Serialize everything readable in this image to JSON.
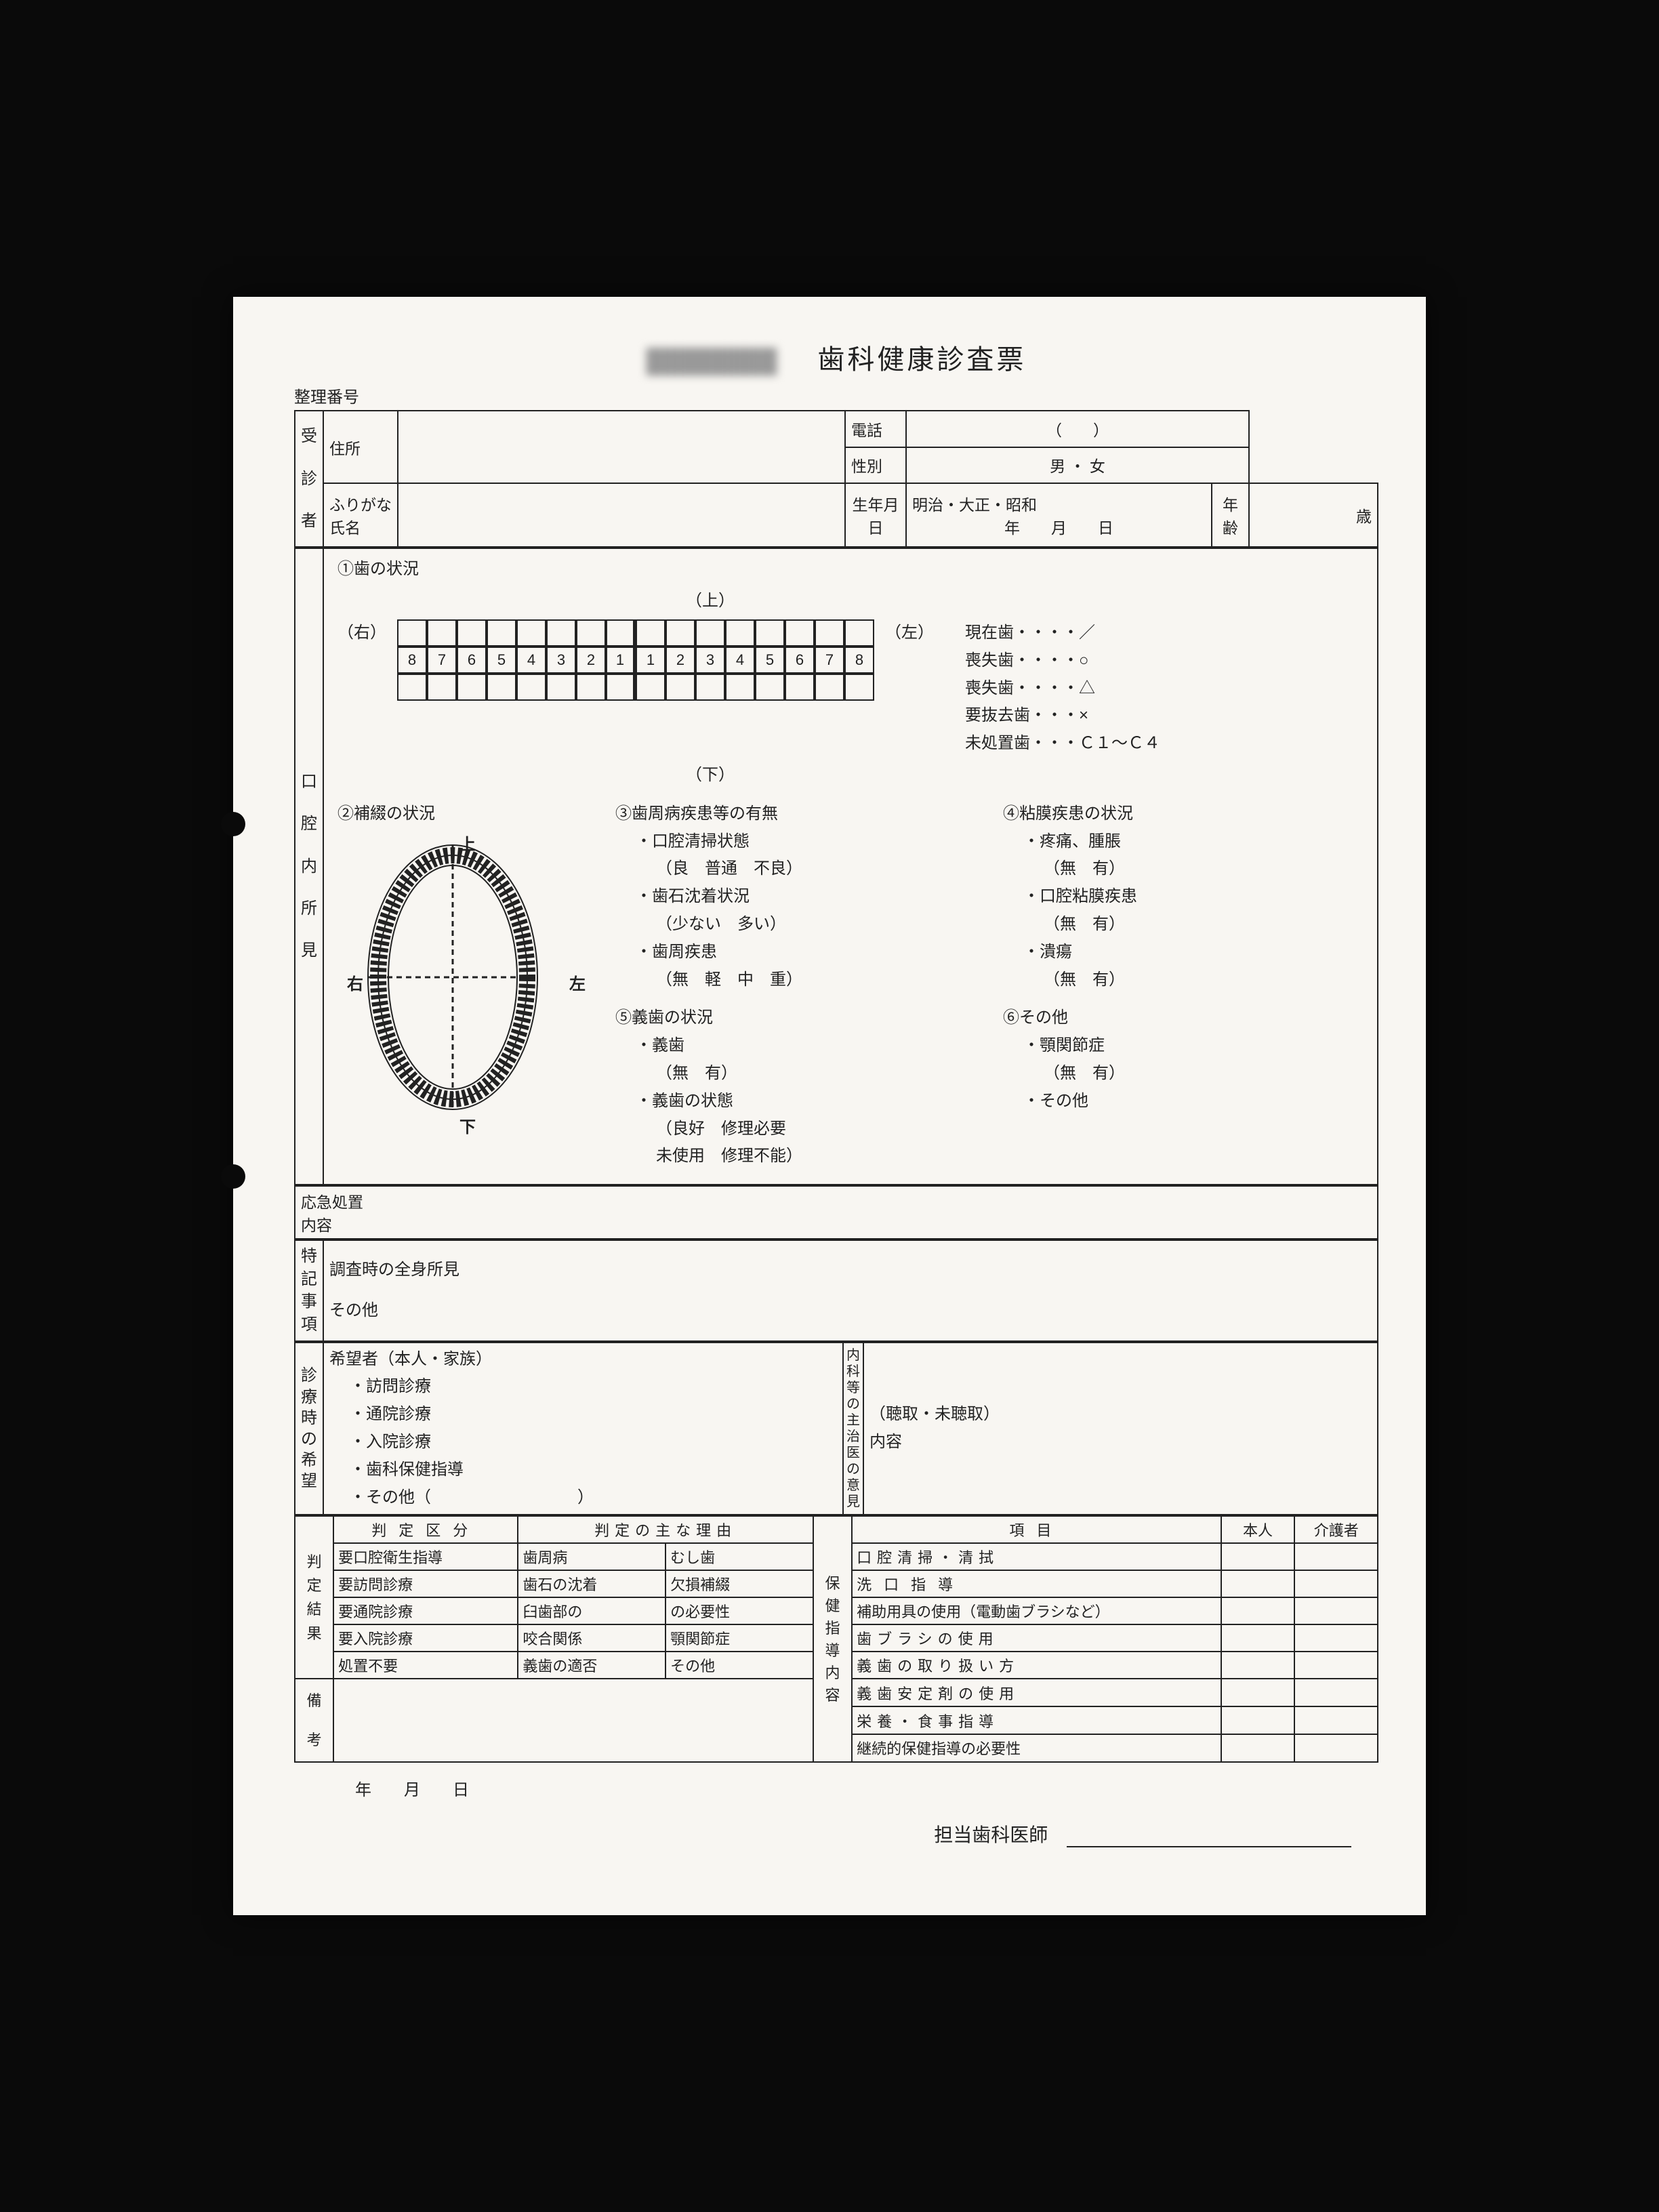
{
  "title_main": "歯科健康診査票",
  "file_number_label": "整理番号",
  "patient": {
    "section_label": "受診者",
    "address_label": "住所",
    "phone_label": "電話",
    "phone_value": "（　　）",
    "gender_label": "性別",
    "gender_value": "男 ・ 女",
    "furigana_label": "ふりがな",
    "name_label": "氏名",
    "dob_label": "生年月日",
    "era_value": "明治・大正・昭和",
    "date_value": "年　　月　　日",
    "age_label": "年齢",
    "age_value": "歳"
  },
  "oral": {
    "section_label": "口腔内所見",
    "s1_title": "①歯の状況",
    "upper": "（上）",
    "lower": "（下）",
    "right": "（右）",
    "left": "（左）",
    "teeth_nums": [
      "8",
      "7",
      "6",
      "5",
      "4",
      "3",
      "2",
      "1",
      "1",
      "2",
      "3",
      "4",
      "5",
      "6",
      "7",
      "8"
    ],
    "legend": {
      "l1": "現在歯・・・・／",
      "l2": "喪失歯・・・・○",
      "l3": "喪失歯・・・・△",
      "l4": "要抜去歯・・・×",
      "l5": "未処置歯・・・Ｃ１～Ｃ４"
    },
    "s2_title": "②補綴の状況",
    "diagram_labels": {
      "up": "上",
      "down": "下",
      "right": "右",
      "left": "左"
    },
    "s3": {
      "title": "③歯周病疾患等の有無",
      "a_label": "・口腔清掃状態",
      "a_opts": "（良　普通　不良）",
      "b_label": "・歯石沈着状況",
      "b_opts": "（少ない　多い）",
      "c_label": "・歯周疾患",
      "c_opts": "（無　軽　中　重）"
    },
    "s4": {
      "title": "④粘膜疾患の状況",
      "a_label": "・疼痛、腫脹",
      "a_opts": "（無　有）",
      "b_label": "・口腔粘膜疾患",
      "b_opts": "（無　有）",
      "c_label": "・潰瘍",
      "c_opts": "（無　有）"
    },
    "s5": {
      "title": "⑤義歯の状況",
      "a_label": "・義歯",
      "a_opts": "（無　有）",
      "b_label": "・義歯の状態",
      "b_opts1": "（良好　修理必要",
      "b_opts2": "未使用　修理不能）"
    },
    "s6": {
      "title": "⑥その他",
      "a_label": "・顎関節症",
      "a_opts": "（無　有）",
      "b_label": "・その他"
    }
  },
  "emergency": {
    "label1": "応急処置",
    "label2": "内容"
  },
  "notes": {
    "section_label": "特記事項",
    "line1": "調査時の全身所見",
    "line2": "その他"
  },
  "wishes": {
    "section_label": "診療時の希望",
    "applicant": "希望者（本人・家族）",
    "opt1": "・訪問診療",
    "opt2": "・通院診療",
    "opt3": "・入院診療",
    "opt4": "・歯科保健指導",
    "opt5": "・その他（　　　　　　　　　）",
    "physician_label": "内科等の主治医の意見",
    "heard": "（聴取・未聴取）",
    "content_label": "内容"
  },
  "judgement": {
    "section_label": "判定結果",
    "col1_header": "判定区分",
    "col2_header": "判定の主な理由",
    "rows": [
      {
        "a": "要口腔衛生指導",
        "b": "歯周病",
        "c": "むし歯"
      },
      {
        "a": "要訪問診療",
        "b": "歯石の沈着",
        "c": "欠損補綴"
      },
      {
        "a": "要通院診療",
        "b": "臼歯部の",
        "c": "の必要性"
      },
      {
        "a": "要入院診療",
        "b": "咬合関係",
        "c": "顎関節症"
      },
      {
        "a": "処置不要",
        "b": "義歯の適否",
        "c": "その他"
      }
    ]
  },
  "guidance": {
    "section_label": "保健指導内容",
    "col_item": "項目",
    "col_self": "本人",
    "col_carer": "介護者",
    "items": [
      "口腔清掃・清拭",
      "洗口指導",
      "補助用具の使用（電動歯ブラシなど）",
      "歯ブラシの使用",
      "義歯の取り扱い方",
      "義歯安定剤の使用",
      "栄養・食事指導",
      "継続的保健指導の必要性"
    ]
  },
  "remarks_label": "備考",
  "date_line": "年　　月　　日",
  "signature_label": "担当歯科医師",
  "colors": {
    "paper": "#f8f6f2",
    "ink": "#222222",
    "bg": "#0a0a0a"
  }
}
